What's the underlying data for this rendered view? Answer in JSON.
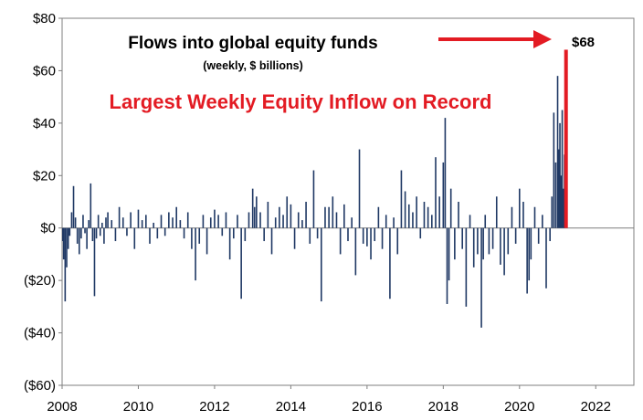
{
  "chart_data": {
    "type": "bar",
    "title": "Flows into global equity funds",
    "subtitle": "(weekly, $ billions)",
    "annotation": "Largest Weekly Equity Inflow on Record",
    "callout_label": "$68",
    "callout_value": 68,
    "xlim": [
      2008,
      2023
    ],
    "ylim": [
      -60,
      80
    ],
    "x_ticks": [
      2008,
      2010,
      2012,
      2014,
      2016,
      2018,
      2020,
      2022
    ],
    "x_tick_labels": [
      "2008",
      "2010",
      "2012",
      "2014",
      "2016",
      "2018",
      "2020",
      "2022"
    ],
    "y_ticks": [
      80,
      60,
      40,
      20,
      0,
      -20,
      -40,
      -60
    ],
    "y_tick_labels": [
      "$80",
      "$60",
      "$40",
      "$20",
      "$0",
      "($20)",
      "($40)",
      "($60)"
    ],
    "grid": false,
    "legend": "none",
    "colors": {
      "bars": "#1f3864",
      "highlight": "#e31b23",
      "annotation": "#e31b23"
    },
    "highlight_point": {
      "x": 2021.22,
      "value": 68
    },
    "series": [
      {
        "note": "approximate weekly values read from the chart",
        "points": [
          [
            2008.02,
            -5
          ],
          [
            2008.04,
            -12
          ],
          [
            2008.08,
            -28
          ],
          [
            2008.12,
            -15
          ],
          [
            2008.16,
            -8
          ],
          [
            2008.2,
            -3
          ],
          [
            2008.25,
            6
          ],
          [
            2008.3,
            16
          ],
          [
            2008.35,
            4
          ],
          [
            2008.4,
            -6
          ],
          [
            2008.45,
            -10
          ],
          [
            2008.5,
            -4
          ],
          [
            2008.55,
            5
          ],
          [
            2008.6,
            -2
          ],
          [
            2008.65,
            -8
          ],
          [
            2008.7,
            3
          ],
          [
            2008.75,
            17
          ],
          [
            2008.8,
            -5
          ],
          [
            2008.85,
            -26
          ],
          [
            2008.9,
            -4
          ],
          [
            2008.95,
            5
          ],
          [
            2009.0,
            -3
          ],
          [
            2009.05,
            2
          ],
          [
            2009.1,
            -6
          ],
          [
            2009.15,
            4
          ],
          [
            2009.2,
            6
          ],
          [
            2009.3,
            3
          ],
          [
            2009.4,
            -5
          ],
          [
            2009.5,
            8
          ],
          [
            2009.6,
            4
          ],
          [
            2009.7,
            -3
          ],
          [
            2009.8,
            6
          ],
          [
            2009.9,
            -8
          ],
          [
            2010.0,
            7
          ],
          [
            2010.1,
            3
          ],
          [
            2010.2,
            5
          ],
          [
            2010.3,
            -6
          ],
          [
            2010.4,
            2
          ],
          [
            2010.5,
            -4
          ],
          [
            2010.6,
            5
          ],
          [
            2010.7,
            -3
          ],
          [
            2010.8,
            6
          ],
          [
            2010.9,
            4
          ],
          [
            2011.0,
            8
          ],
          [
            2011.1,
            3
          ],
          [
            2011.2,
            -4
          ],
          [
            2011.3,
            6
          ],
          [
            2011.4,
            -8
          ],
          [
            2011.5,
            -20
          ],
          [
            2011.6,
            -6
          ],
          [
            2011.7,
            5
          ],
          [
            2011.8,
            -10
          ],
          [
            2011.9,
            4
          ],
          [
            2012.0,
            7
          ],
          [
            2012.1,
            5
          ],
          [
            2012.2,
            -3
          ],
          [
            2012.3,
            6
          ],
          [
            2012.4,
            -12
          ],
          [
            2012.5,
            -4
          ],
          [
            2012.6,
            5
          ],
          [
            2012.7,
            -27
          ],
          [
            2012.8,
            -5
          ],
          [
            2012.9,
            6
          ],
          [
            2013.0,
            15
          ],
          [
            2013.05,
            8
          ],
          [
            2013.1,
            12
          ],
          [
            2013.2,
            6
          ],
          [
            2013.3,
            -5
          ],
          [
            2013.4,
            10
          ],
          [
            2013.5,
            -10
          ],
          [
            2013.6,
            4
          ],
          [
            2013.7,
            8
          ],
          [
            2013.8,
            5
          ],
          [
            2013.9,
            12
          ],
          [
            2014.0,
            9
          ],
          [
            2014.1,
            -8
          ],
          [
            2014.2,
            6
          ],
          [
            2014.3,
            3
          ],
          [
            2014.4,
            10
          ],
          [
            2014.5,
            -6
          ],
          [
            2014.6,
            22
          ],
          [
            2014.7,
            -4
          ],
          [
            2014.8,
            -28
          ],
          [
            2014.9,
            8
          ],
          [
            2015.0,
            8
          ],
          [
            2015.1,
            12
          ],
          [
            2015.2,
            6
          ],
          [
            2015.3,
            -10
          ],
          [
            2015.4,
            9
          ],
          [
            2015.5,
            -5
          ],
          [
            2015.6,
            4
          ],
          [
            2015.7,
            -18
          ],
          [
            2015.8,
            30
          ],
          [
            2015.9,
            -6
          ],
          [
            2016.0,
            -7
          ],
          [
            2016.1,
            -12
          ],
          [
            2016.2,
            -5
          ],
          [
            2016.3,
            8
          ],
          [
            2016.4,
            -8
          ],
          [
            2016.5,
            5
          ],
          [
            2016.6,
            -27
          ],
          [
            2016.7,
            4
          ],
          [
            2016.8,
            -10
          ],
          [
            2016.9,
            22
          ],
          [
            2017.0,
            14
          ],
          [
            2017.1,
            9
          ],
          [
            2017.2,
            6
          ],
          [
            2017.3,
            12
          ],
          [
            2017.4,
            -4
          ],
          [
            2017.5,
            10
          ],
          [
            2017.6,
            8
          ],
          [
            2017.7,
            5
          ],
          [
            2017.8,
            27
          ],
          [
            2017.9,
            12
          ],
          [
            2018.0,
            25
          ],
          [
            2018.05,
            42
          ],
          [
            2018.1,
            -29
          ],
          [
            2018.15,
            -20
          ],
          [
            2018.2,
            15
          ],
          [
            2018.3,
            -12
          ],
          [
            2018.4,
            10
          ],
          [
            2018.5,
            -8
          ],
          [
            2018.6,
            -30
          ],
          [
            2018.7,
            5
          ],
          [
            2018.8,
            -15
          ],
          [
            2018.9,
            -10
          ],
          [
            2019.0,
            -38
          ],
          [
            2019.05,
            -12
          ],
          [
            2019.1,
            5
          ],
          [
            2019.2,
            -10
          ],
          [
            2019.3,
            -8
          ],
          [
            2019.4,
            12
          ],
          [
            2019.5,
            -14
          ],
          [
            2019.6,
            -18
          ],
          [
            2019.7,
            -10
          ],
          [
            2019.8,
            8
          ],
          [
            2019.9,
            -6
          ],
          [
            2020.0,
            15
          ],
          [
            2020.1,
            10
          ],
          [
            2020.2,
            -25
          ],
          [
            2020.25,
            -20
          ],
          [
            2020.3,
            -12
          ],
          [
            2020.4,
            8
          ],
          [
            2020.5,
            -6
          ],
          [
            2020.6,
            5
          ],
          [
            2020.7,
            -23
          ],
          [
            2020.8,
            -5
          ],
          [
            2020.85,
            12
          ],
          [
            2020.9,
            44
          ],
          [
            2020.95,
            25
          ],
          [
            2021.0,
            58
          ],
          [
            2021.03,
            30
          ],
          [
            2021.06,
            40
          ],
          [
            2021.09,
            20
          ],
          [
            2021.12,
            45
          ],
          [
            2021.15,
            15
          ],
          [
            2021.18,
            28
          ]
        ]
      }
    ]
  }
}
